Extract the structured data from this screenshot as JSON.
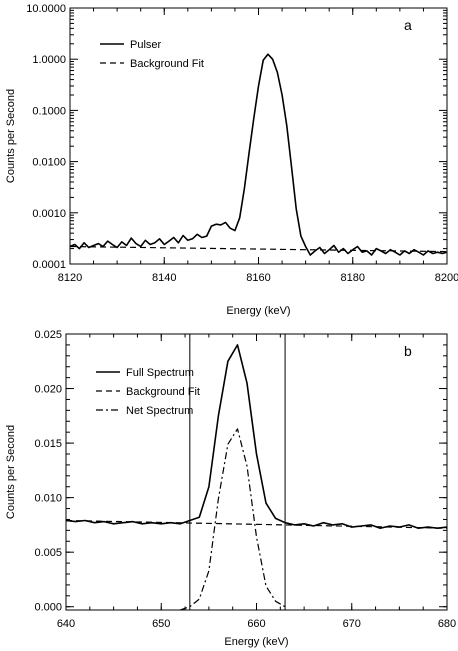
{
  "chart_data": [
    {
      "type": "line",
      "panel_label": "a",
      "xlabel": "Energy (keV)",
      "ylabel": "Counts per Second",
      "xlim": [
        8120,
        8200
      ],
      "ylim": [
        0.0001,
        10
      ],
      "yscale": "log",
      "x_ticks": [
        8120,
        8140,
        8160,
        8180,
        8200
      ],
      "x_tick_labels": [
        "8120",
        "8140",
        "8160",
        "8180",
        "8200"
      ],
      "y_ticks": [
        0.0001,
        0.001,
        0.01,
        0.1,
        1,
        10
      ],
      "y_tick_labels": [
        "0.0001",
        "0.0010",
        "0.0100",
        "0.1000",
        "1.0000",
        "10.0000"
      ],
      "legend": "top-left",
      "grid": false,
      "series": [
        {
          "name": "Pulser",
          "style": "solid",
          "x": [
            8120,
            8121,
            8122,
            8123,
            8124,
            8125,
            8126,
            8127,
            8128,
            8129,
            8130,
            8131,
            8132,
            8133,
            8134,
            8135,
            8136,
            8137,
            8138,
            8139,
            8140,
            8141,
            8142,
            8143,
            8144,
            8145,
            8146,
            8147,
            8148,
            8149,
            8150,
            8151,
            8152,
            8153,
            8154,
            8155,
            8156,
            8157,
            8158,
            8159,
            8160,
            8161,
            8162,
            8163,
            8164,
            8165,
            8166,
            8167,
            8168,
            8169,
            8170,
            8171,
            8172,
            8173,
            8174,
            8175,
            8176,
            8177,
            8178,
            8179,
            8180,
            8181,
            8182,
            8183,
            8184,
            8185,
            8186,
            8187,
            8188,
            8189,
            8190,
            8191,
            8192,
            8193,
            8194,
            8195,
            8196,
            8197,
            8198,
            8199,
            8200
          ],
          "y": [
            0.00022,
            0.00024,
            0.0002,
            0.00026,
            0.00021,
            0.00023,
            0.00025,
            0.00022,
            0.00028,
            0.00024,
            0.00021,
            0.00027,
            0.00023,
            0.00032,
            0.00025,
            0.00022,
            0.00029,
            0.00024,
            0.00026,
            0.00031,
            0.00024,
            0.00028,
            0.00033,
            0.00026,
            0.00036,
            0.00029,
            0.00031,
            0.00038,
            0.00033,
            0.00035,
            0.00055,
            0.0006,
            0.00058,
            0.00065,
            0.0005,
            0.00045,
            0.0008,
            0.003,
            0.015,
            0.07,
            0.3,
            0.95,
            1.25,
            1.0,
            0.55,
            0.2,
            0.05,
            0.008,
            0.0012,
            0.00035,
            0.00022,
            0.00015,
            0.00018,
            0.00021,
            0.00016,
            0.00019,
            0.00023,
            0.00017,
            0.0002,
            0.00016,
            0.00019,
            0.00022,
            0.00017,
            0.00018,
            0.00015,
            0.0002,
            0.00018,
            0.00016,
            0.00019,
            0.00017,
            0.00015,
            0.00018,
            0.00016,
            0.00019,
            0.00017,
            0.00015,
            0.00018,
            0.00016,
            0.00017,
            0.00016,
            0.00017
          ]
        },
        {
          "name": "Background Fit",
          "style": "dashed",
          "x": [
            8120,
            8200
          ],
          "y": [
            0.00022,
            0.000175
          ]
        }
      ]
    },
    {
      "type": "line",
      "panel_label": "b",
      "xlabel": "Energy (keV)",
      "ylabel": "Counts per Second",
      "xlim": [
        640,
        680
      ],
      "ylim": [
        -0.0003,
        0.025
      ],
      "x_ticks": [
        640,
        650,
        660,
        670,
        680
      ],
      "x_tick_labels": [
        "640",
        "650",
        "660",
        "670",
        "680"
      ],
      "y_ticks": [
        0,
        0.005,
        0.01,
        0.015,
        0.02,
        0.025
      ],
      "y_tick_labels": [
        "0.000",
        "0.005",
        "0.010",
        "0.015",
        "0.020",
        "0.025"
      ],
      "vertical_lines": [
        653,
        663
      ],
      "legend": "top-left",
      "grid": false,
      "series": [
        {
          "name": "Full Spectrum",
          "style": "solid",
          "x": [
            640,
            641,
            642,
            643,
            644,
            645,
            646,
            647,
            648,
            649,
            650,
            651,
            652,
            653,
            654,
            655,
            656,
            657,
            658,
            659,
            660,
            661,
            662,
            663,
            664,
            665,
            666,
            667,
            668,
            669,
            670,
            671,
            672,
            673,
            674,
            675,
            676,
            677,
            678,
            679,
            680
          ],
          "y": [
            0.0079,
            0.0078,
            0.0079,
            0.0077,
            0.0078,
            0.0076,
            0.0077,
            0.0078,
            0.0076,
            0.0077,
            0.0076,
            0.0077,
            0.0076,
            0.0079,
            0.0082,
            0.011,
            0.0175,
            0.0225,
            0.024,
            0.0205,
            0.014,
            0.0095,
            0.0081,
            0.0077,
            0.0075,
            0.0076,
            0.0074,
            0.0077,
            0.0075,
            0.0076,
            0.0073,
            0.0074,
            0.0075,
            0.0072,
            0.0074,
            0.0073,
            0.0075,
            0.0072,
            0.0073,
            0.0072,
            0.0073
          ]
        },
        {
          "name": "Background Fit",
          "style": "dashed",
          "x": [
            640,
            680
          ],
          "y": [
            0.0079,
            0.0072
          ]
        },
        {
          "name": "Net Spectrum",
          "style": "dash-dot",
          "x": [
            652,
            653,
            654,
            655,
            656,
            657,
            658,
            659,
            660,
            661,
            662,
            663
          ],
          "y": [
            -0.0003,
            0.0,
            0.0007,
            0.0033,
            0.0099,
            0.0149,
            0.0163,
            0.0129,
            0.0064,
            0.0019,
            0.0005,
            0.0
          ]
        }
      ]
    }
  ]
}
